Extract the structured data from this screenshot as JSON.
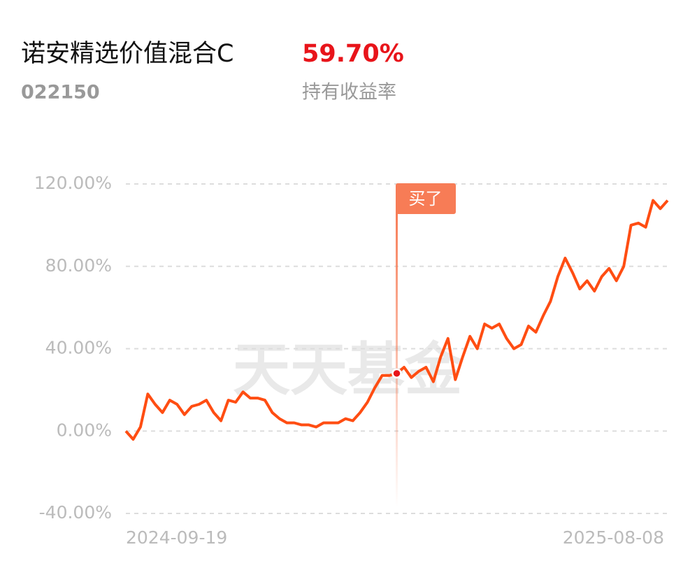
{
  "header": {
    "title": "诺安精选价值混合C",
    "code": "022150",
    "return_value": "59.70%",
    "return_label": "持有收益率"
  },
  "chart_data": {
    "type": "line",
    "watermark": "天天基金",
    "categories": [
      "2024-09-19",
      null,
      null,
      null,
      null,
      null,
      null,
      null,
      null,
      null,
      null,
      null,
      null,
      null,
      null,
      null,
      null,
      null,
      null,
      null,
      null,
      null,
      null,
      null,
      null,
      null,
      null,
      null,
      null,
      null,
      null,
      null,
      null,
      null,
      null,
      null,
      null,
      null,
      null,
      null,
      null,
      null,
      null,
      null,
      null,
      null,
      null,
      null,
      null,
      null,
      null,
      null,
      null,
      null,
      null,
      null,
      null,
      null,
      null,
      null,
      null,
      null,
      null,
      null,
      null,
      null,
      null,
      null,
      null,
      null,
      null,
      null,
      null,
      null,
      "2025-08-08"
    ],
    "series": [
      {
        "color": "#ff4d12",
        "values": [
          0,
          -4,
          2,
          18,
          13,
          9,
          15,
          13,
          8,
          12,
          13,
          15,
          9,
          5,
          15,
          14,
          19,
          16,
          16,
          15,
          9,
          6,
          4,
          4,
          3,
          3,
          2,
          4,
          4,
          4,
          6,
          5,
          9,
          14,
          21,
          27,
          27,
          28,
          31,
          26,
          29,
          31,
          24,
          36,
          45,
          25,
          36,
          46,
          40,
          52,
          50,
          52,
          45,
          40,
          42,
          51,
          48,
          56,
          63,
          75,
          84,
          77,
          69,
          73,
          68,
          75,
          79,
          73,
          80,
          100,
          101,
          99,
          112,
          108,
          112
        ]
      }
    ],
    "annotation": {
      "text": "买了",
      "index": 37
    },
    "ylim": [
      -40,
      120
    ],
    "yticks": [
      {
        "value": -40,
        "label": "-40.00%"
      },
      {
        "value": 0,
        "label": "0.00%"
      },
      {
        "value": 40,
        "label": "40.00%"
      },
      {
        "value": 80,
        "label": "80.00%"
      },
      {
        "value": 120,
        "label": "120.00%"
      }
    ],
    "grid": true
  }
}
